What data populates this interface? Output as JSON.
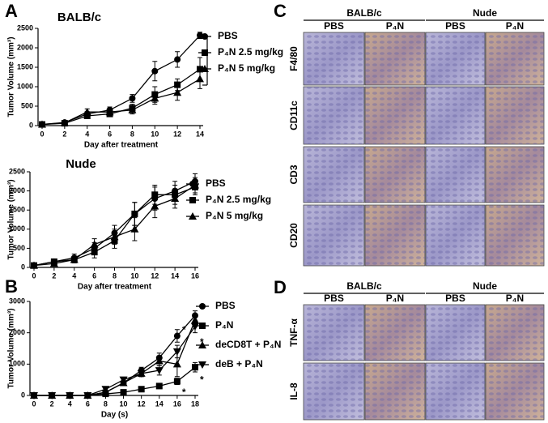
{
  "chart_data": [
    {
      "type": "line",
      "title": "BALB/c",
      "xlabel": "Day after treatment",
      "ylabel": "Tumor Volume (mm³)",
      "x": [
        0,
        2,
        4,
        6,
        8,
        10,
        12,
        14
      ],
      "xlim": [
        0,
        14
      ],
      "xticks": [
        0,
        2,
        4,
        6,
        8,
        10,
        12,
        14
      ],
      "ylim": [
        0,
        2500
      ],
      "yticks": [
        0,
        500,
        1000,
        1500,
        2000,
        2500
      ],
      "series": [
        {
          "name": "PBS",
          "color": "#000000",
          "marker": "circle",
          "values": [
            30,
            80,
            300,
            400,
            700,
            1400,
            1700,
            2320
          ],
          "errors": [
            10,
            20,
            60,
            80,
            100,
            250,
            200,
            80
          ]
        },
        {
          "name": "P₄N 2.5 mg/kg",
          "color": "#000000",
          "marker": "square",
          "values": [
            30,
            60,
            250,
            300,
            450,
            800,
            1050,
            1450
          ],
          "errors": [
            10,
            20,
            60,
            60,
            100,
            200,
            150,
            300
          ]
        },
        {
          "name": "P₄N 5 mg/kg",
          "color": "#000000",
          "marker": "triangle",
          "values": [
            30,
            70,
            350,
            350,
            400,
            700,
            850,
            1200
          ],
          "errors": [
            10,
            20,
            80,
            80,
            100,
            150,
            200,
            250
          ]
        }
      ]
    },
    {
      "type": "line",
      "title": "Nude",
      "xlabel": "Day after treatment",
      "ylabel": "Tumor Volume (mm³)",
      "x": [
        0,
        2,
        4,
        6,
        8,
        10,
        12,
        14,
        16
      ],
      "xlim": [
        0,
        16
      ],
      "xticks": [
        0,
        2,
        4,
        6,
        8,
        10,
        12,
        14,
        16
      ],
      "ylim": [
        0,
        2500
      ],
      "yticks": [
        0,
        500,
        1000,
        1500,
        2000,
        2500
      ],
      "series": [
        {
          "name": "PBS",
          "color": "#000000",
          "marker": "circle",
          "values": [
            50,
            150,
            250,
            500,
            900,
            1400,
            1800,
            2000,
            2250
          ],
          "errors": [
            10,
            60,
            100,
            150,
            200,
            300,
            300,
            250,
            200
          ]
        },
        {
          "name": "P₄N 2.5 mg/kg",
          "color": "#000000",
          "marker": "square",
          "values": [
            50,
            150,
            200,
            400,
            700,
            1400,
            1900,
            1900,
            2100
          ],
          "errors": [
            10,
            60,
            80,
            150,
            200,
            300,
            250,
            250,
            200
          ]
        },
        {
          "name": "P₄N 5 mg/kg",
          "color": "#000000",
          "marker": "triangle",
          "values": [
            50,
            100,
            200,
            600,
            800,
            1000,
            1600,
            1800,
            2150
          ],
          "errors": [
            10,
            60,
            80,
            150,
            200,
            300,
            300,
            250,
            200
          ]
        }
      ]
    },
    {
      "type": "line",
      "xlabel": "Day (s)",
      "ylabel": "Tumor Volume (mm³)",
      "x": [
        0,
        2,
        4,
        6,
        8,
        10,
        12,
        14,
        16,
        18
      ],
      "xlim": [
        0,
        18
      ],
      "xticks": [
        0,
        2,
        4,
        6,
        8,
        10,
        12,
        14,
        16,
        18
      ],
      "ylim": [
        0,
        3000
      ],
      "yticks": [
        0,
        1000,
        2000,
        3000
      ],
      "annotations": [
        "*",
        "*",
        "*",
        "*"
      ],
      "series": [
        {
          "name": "PBS",
          "color": "#000000",
          "marker": "circle",
          "values": [
            0,
            0,
            0,
            0,
            100,
            400,
            800,
            1200,
            1900,
            2550
          ],
          "errors": [
            0,
            0,
            0,
            0,
            30,
            80,
            100,
            150,
            200,
            150
          ]
        },
        {
          "name": "P₄N",
          "color": "#000000",
          "marker": "square",
          "values": [
            0,
            0,
            0,
            0,
            50,
            100,
            200,
            300,
            450,
            900
          ],
          "errors": [
            0,
            0,
            0,
            0,
            20,
            30,
            50,
            80,
            100,
            150
          ]
        },
        {
          "name": "deCD8T + P₄N",
          "color": "#000000",
          "marker": "triangle",
          "values": [
            0,
            0,
            0,
            0,
            100,
            400,
            700,
            1100,
            1000,
            2400
          ],
          "errors": [
            0,
            0,
            0,
            0,
            30,
            80,
            100,
            150,
            400,
            200
          ]
        },
        {
          "name": "deB + P₄N",
          "color": "#000000",
          "marker": "triangle-down",
          "values": [
            0,
            0,
            0,
            0,
            200,
            500,
            700,
            800,
            1400,
            2200
          ],
          "errors": [
            0,
            0,
            0,
            0,
            50,
            80,
            100,
            150,
            200,
            200
          ]
        }
      ]
    }
  ],
  "figure": {
    "panel_labels": [
      "A",
      "B",
      "C",
      "D"
    ],
    "C": {
      "groups": [
        "BALB/c",
        "Nude"
      ],
      "columns": [
        "PBS",
        "P₄N",
        "PBS",
        "P₄N"
      ],
      "rows": [
        "F4/80",
        "CD11c",
        "CD3",
        "CD20"
      ]
    },
    "D": {
      "groups": [
        "BALB/c",
        "Nude"
      ],
      "columns": [
        "PBS",
        "P₄N",
        "PBS",
        "P₄N"
      ],
      "rows": [
        "TNF-α",
        "IL-8"
      ]
    }
  }
}
